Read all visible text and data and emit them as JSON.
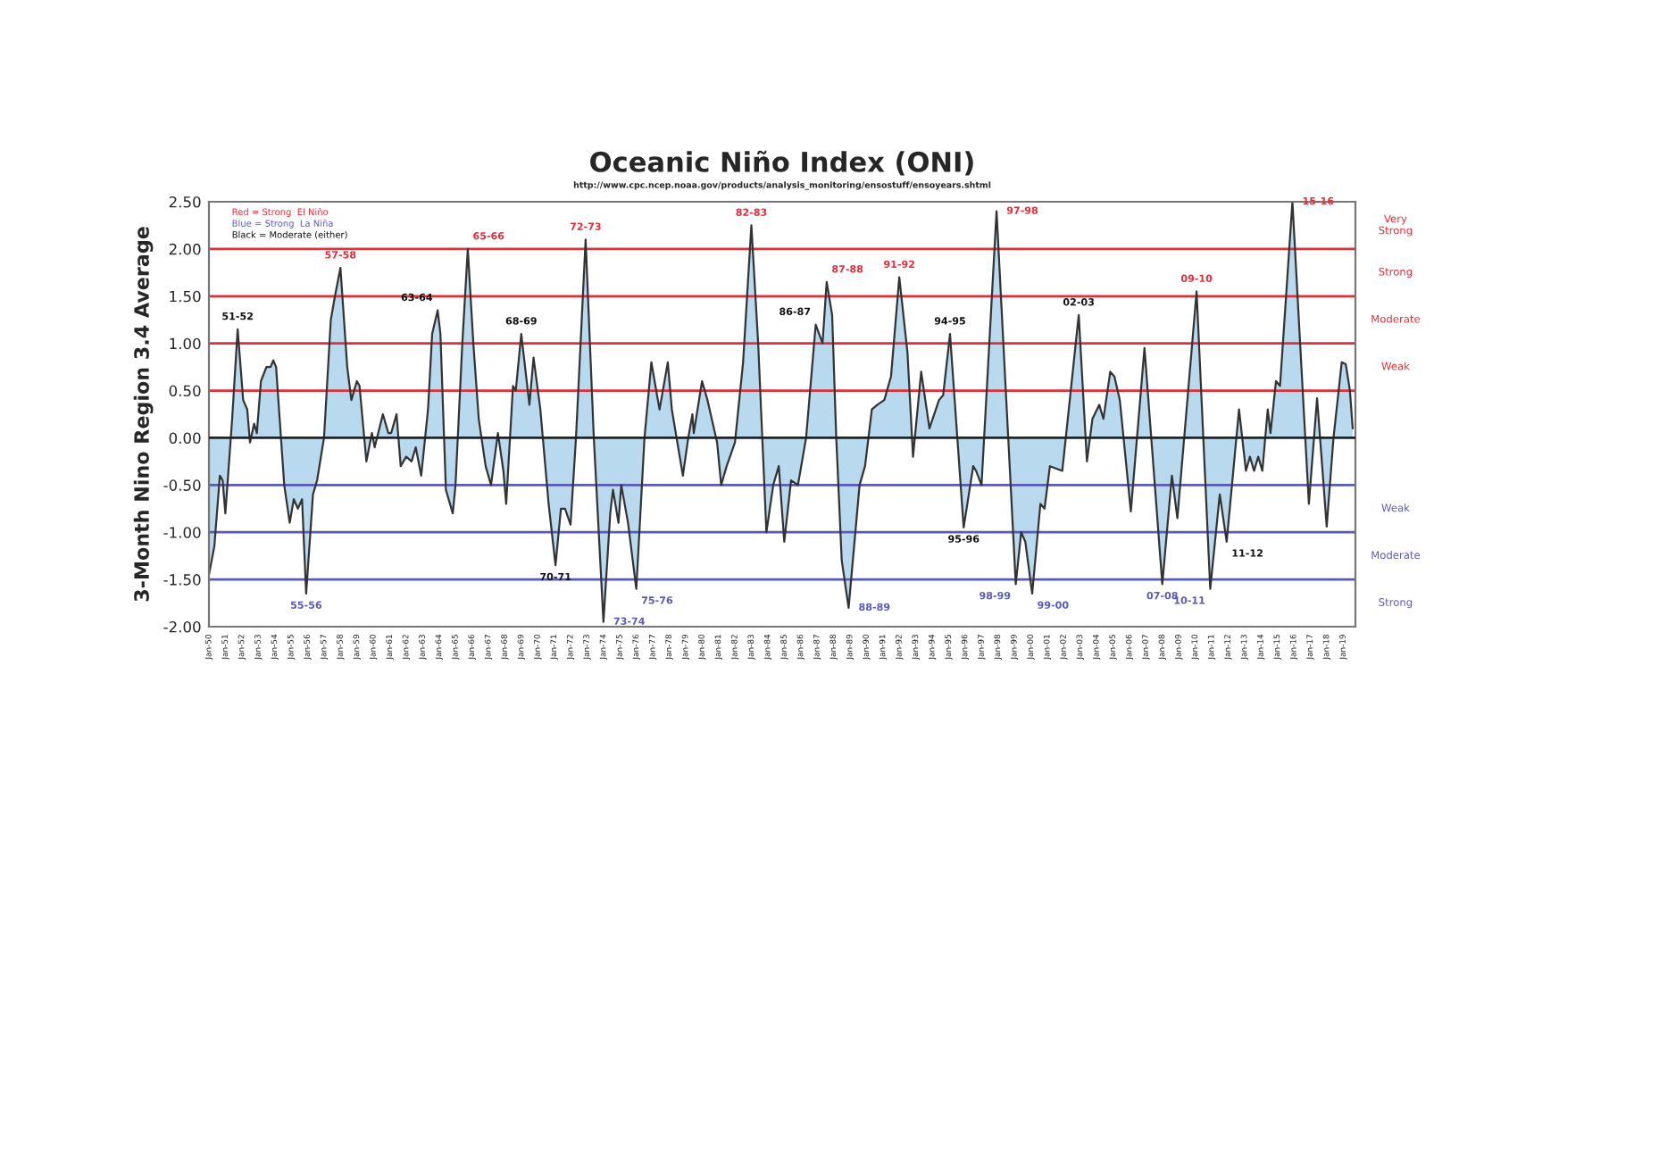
{
  "chart_data": {
    "type": "area",
    "title": "Oceanic Niño Index (ONI)",
    "subtitle": "http://www.cpc.ncep.noaa.gov/products/analysis_monitoring/ensostuff/ensoyears.shtml",
    "ylabel": "3-Month Nino Region 3.4 Average",
    "xlim": [
      "1950-01",
      "2019-10"
    ],
    "ylim": [
      -2.0,
      2.5
    ],
    "yticks": [
      {
        "value": -2.0,
        "label": "-2.00"
      },
      {
        "value": -1.5,
        "label": "-1.50"
      },
      {
        "value": -1.0,
        "label": "-1.00"
      },
      {
        "value": -0.5,
        "label": "-0.50"
      },
      {
        "value": 0,
        "label": "0.00"
      },
      {
        "value": 0.5,
        "label": "0.50"
      },
      {
        "value": 1.0,
        "label": "1.00"
      },
      {
        "value": 1.5,
        "label": "1.50"
      },
      {
        "value": 2.0,
        "label": "2.00"
      },
      {
        "value": 2.5,
        "label": "2.50"
      }
    ],
    "xticks": [
      {
        "value": "1950-01",
        "label": "Jan-50"
      },
      {
        "value": "1951-01",
        "label": "Jan-51"
      },
      {
        "value": "1952-01",
        "label": "Jan-52"
      },
      {
        "value": "1953-01",
        "label": "Jan-53"
      },
      {
        "value": "1954-01",
        "label": "Jan-54"
      },
      {
        "value": "1955-01",
        "label": "Jan-55"
      },
      {
        "value": "1956-01",
        "label": "Jan-56"
      },
      {
        "value": "1957-01",
        "label": "Jan-57"
      },
      {
        "value": "1958-01",
        "label": "Jan-58"
      },
      {
        "value": "1959-01",
        "label": "Jan-59"
      },
      {
        "value": "1960-01",
        "label": "Jan-60"
      },
      {
        "value": "1961-01",
        "label": "Jan-61"
      },
      {
        "value": "1962-01",
        "label": "Jan-62"
      },
      {
        "value": "1963-01",
        "label": "Jan-63"
      },
      {
        "value": "1964-01",
        "label": "Jan-64"
      },
      {
        "value": "1965-01",
        "label": "Jan-65"
      },
      {
        "value": "1966-01",
        "label": "Jan-66"
      },
      {
        "value": "1967-01",
        "label": "Jan-67"
      },
      {
        "value": "1968-01",
        "label": "Jan-68"
      },
      {
        "value": "1969-01",
        "label": "Jan-69"
      },
      {
        "value": "1970-01",
        "label": "Jan-70"
      },
      {
        "value": "1971-01",
        "label": "Jan-71"
      },
      {
        "value": "1972-01",
        "label": "Jan-72"
      },
      {
        "value": "1973-01",
        "label": "Jan-73"
      },
      {
        "value": "1974-01",
        "label": "Jan-74"
      },
      {
        "value": "1975-01",
        "label": "Jan-75"
      },
      {
        "value": "1976-01",
        "label": "Jan-76"
      },
      {
        "value": "1977-01",
        "label": "Jan-77"
      },
      {
        "value": "1978-01",
        "label": "Jan-78"
      },
      {
        "value": "1979-01",
        "label": "Jan-79"
      },
      {
        "value": "1980-01",
        "label": "Jan-80"
      },
      {
        "value": "1981-01",
        "label": "Jan-81"
      },
      {
        "value": "1982-01",
        "label": "Jan-82"
      },
      {
        "value": "1983-01",
        "label": "Jan-83"
      },
      {
        "value": "1984-01",
        "label": "Jan-84"
      },
      {
        "value": "1985-01",
        "label": "Jan-85"
      },
      {
        "value": "1986-01",
        "label": "Jan-86"
      },
      {
        "value": "1987-01",
        "label": "Jan-87"
      },
      {
        "value": "1988-01",
        "label": "Jan-88"
      },
      {
        "value": "1989-01",
        "label": "Jan-89"
      },
      {
        "value": "1990-01",
        "label": "Jan-90"
      },
      {
        "value": "1991-01",
        "label": "Jan-91"
      },
      {
        "value": "1992-01",
        "label": "Jan-92"
      },
      {
        "value": "1993-01",
        "label": "Jan-93"
      },
      {
        "value": "1994-01",
        "label": "Jan-94"
      },
      {
        "value": "1995-01",
        "label": "Jan-95"
      },
      {
        "value": "1996-01",
        "label": "Jan-96"
      },
      {
        "value": "1997-01",
        "label": "Jan-97"
      },
      {
        "value": "1998-01",
        "label": "Jan-98"
      },
      {
        "value": "1999-01",
        "label": "Jan-99"
      },
      {
        "value": "2000-01",
        "label": "Jan-00"
      },
      {
        "value": "2001-01",
        "label": "Jan-01"
      },
      {
        "value": "2002-01",
        "label": "Jan-02"
      },
      {
        "value": "2003-01",
        "label": "Jan-03"
      },
      {
        "value": "2004-01",
        "label": "Jan-04"
      },
      {
        "value": "2005-01",
        "label": "Jan-05"
      },
      {
        "value": "2006-01",
        "label": "Jan-06"
      },
      {
        "value": "2007-01",
        "label": "Jan-07"
      },
      {
        "value": "2008-01",
        "label": "Jan-08"
      },
      {
        "value": "2009-01",
        "label": "Jan-09"
      },
      {
        "value": "2010-01",
        "label": "Jan-10"
      },
      {
        "value": "2011-01",
        "label": "Jan-11"
      },
      {
        "value": "2012-01",
        "label": "Jan-12"
      },
      {
        "value": "2013-01",
        "label": "Jan-13"
      },
      {
        "value": "2014-01",
        "label": "Jan-14"
      },
      {
        "value": "2015-01",
        "label": "Jan-15"
      },
      {
        "value": "2016-01",
        "label": "Jan-16"
      },
      {
        "value": "2017-01",
        "label": "Jan-17"
      },
      {
        "value": "2018-01",
        "label": "Jan-18"
      },
      {
        "value": "2019-01",
        "label": "Jan-19"
      }
    ],
    "series": [
      {
        "color": "#b9d9ee",
        "x": [
          "1950-01",
          "1950-05",
          "1950-09",
          "1950-11",
          "1951-01",
          "1951-06",
          "1951-10",
          "1952-02",
          "1952-05",
          "1952-07",
          "1952-10",
          "1952-12",
          "1953-03",
          "1953-07",
          "1953-10",
          "1953-12",
          "1954-02",
          "1954-08",
          "1954-12",
          "1955-03",
          "1955-06",
          "1955-09",
          "1955-12",
          "1956-05",
          "1956-08",
          "1957-01",
          "1957-06",
          "1957-09",
          "1958-01",
          "1958-06",
          "1958-09",
          "1959-01",
          "1959-03",
          "1959-08",
          "1959-12",
          "1960-02",
          "1960-08",
          "1960-12",
          "1961-02",
          "1961-06",
          "1961-09",
          "1962-01",
          "1962-05",
          "1962-08",
          "1962-12",
          "1963-05",
          "1963-08",
          "1963-12",
          "1964-02",
          "1964-06",
          "1964-11",
          "1965-01",
          "1965-06",
          "1965-10",
          "1966-02",
          "1966-06",
          "1966-11",
          "1967-03",
          "1967-08",
          "1967-12",
          "1968-02",
          "1968-07",
          "1968-09",
          "1969-01",
          "1969-07",
          "1969-10",
          "1970-03",
          "1970-09",
          "1971-02",
          "1971-06",
          "1971-09",
          "1972-01",
          "1972-05",
          "1972-12",
          "1973-06",
          "1974-01",
          "1974-06",
          "1974-08",
          "1974-12",
          "1975-02",
          "1975-07",
          "1976-01",
          "1976-07",
          "1976-12",
          "1977-03",
          "1977-06",
          "1977-12",
          "1978-03",
          "1978-11",
          "1979-03",
          "1979-06",
          "1979-07",
          "1980-01",
          "1980-05",
          "1980-12",
          "1981-03",
          "1981-07",
          "1982-01",
          "1982-07",
          "1983-01",
          "1983-06",
          "1983-12",
          "1984-05",
          "1984-09",
          "1985-01",
          "1985-06",
          "1985-11",
          "1986-05",
          "1986-12",
          "1987-05",
          "1987-08",
          "1987-12",
          "1988-03",
          "1988-07",
          "1988-12",
          "1989-08",
          "1989-12",
          "1990-05",
          "1990-09",
          "1991-02",
          "1991-07",
          "1992-01",
          "1992-07",
          "1992-11",
          "1993-05",
          "1993-11",
          "1994-06",
          "1994-09",
          "1995-02",
          "1995-12",
          "1996-07",
          "1996-09",
          "1997-01",
          "1997-12",
          "1999-02",
          "1999-06",
          "1999-09",
          "2000-02",
          "2000-08",
          "2000-11",
          "2001-03",
          "2001-12",
          "2002-12",
          "2003-06",
          "2003-10",
          "2004-03",
          "2004-06",
          "2004-11",
          "2005-02",
          "2005-06",
          "2006-02",
          "2006-12",
          "2008-01",
          "2008-08",
          "2008-12",
          "2010-02",
          "2010-12",
          "2011-07",
          "2011-12",
          "2012-09",
          "2013-02",
          "2013-05",
          "2013-08",
          "2013-11",
          "2014-02",
          "2014-06",
          "2014-08",
          "2014-12",
          "2015-03",
          "2015-12",
          "2016-12",
          "2017-06",
          "2018-01",
          "2018-06",
          "2018-12",
          "2019-03",
          "2019-06",
          "2019-08"
        ],
        "values": [
          -1.45,
          -1.15,
          -0.4,
          -0.45,
          -0.8,
          0.2,
          1.15,
          0.4,
          0.3,
          -0.05,
          0.15,
          0.05,
          0.6,
          0.75,
          0.75,
          0.82,
          0.75,
          -0.5,
          -0.9,
          -0.65,
          -0.75,
          -0.65,
          -1.65,
          -0.6,
          -0.45,
          0.0,
          1.25,
          1.5,
          1.8,
          0.75,
          0.4,
          0.6,
          0.55,
          -0.25,
          0.05,
          -0.1,
          0.25,
          0.05,
          0.05,
          0.25,
          -0.3,
          -0.2,
          -0.25,
          -0.1,
          -0.4,
          0.3,
          1.1,
          1.35,
          1.1,
          -0.55,
          -0.8,
          -0.5,
          1.0,
          2.0,
          1.0,
          0.2,
          -0.3,
          -0.5,
          0.05,
          -0.35,
          -0.7,
          0.55,
          0.5,
          1.1,
          0.35,
          0.85,
          0.3,
          -0.7,
          -1.35,
          -0.75,
          -0.75,
          -0.92,
          0.0,
          2.1,
          0.0,
          -1.95,
          -0.8,
          -0.55,
          -0.9,
          -0.5,
          -0.9,
          -1.6,
          0.0,
          0.8,
          0.55,
          0.3,
          0.8,
          0.3,
          -0.4,
          0.0,
          0.25,
          0.05,
          0.6,
          0.4,
          -0.05,
          -0.5,
          -0.3,
          -0.05,
          0.8,
          2.25,
          1.0,
          -1.0,
          -0.5,
          -0.3,
          -1.1,
          -0.45,
          -0.5,
          0.0,
          1.2,
          1.0,
          1.65,
          1.3,
          0.0,
          -1.3,
          -1.8,
          -0.5,
          -0.3,
          0.3,
          0.35,
          0.4,
          0.65,
          1.7,
          0.9,
          -0.2,
          0.7,
          0.1,
          0.4,
          0.45,
          1.1,
          -0.95,
          -0.3,
          -0.35,
          -0.5,
          2.4,
          -1.55,
          -1.0,
          -1.1,
          -1.65,
          -0.7,
          -0.75,
          -0.3,
          -0.35,
          1.3,
          -0.25,
          0.2,
          0.35,
          0.2,
          0.7,
          0.65,
          0.4,
          -0.78,
          0.95,
          -1.55,
          -0.4,
          -0.85,
          1.55,
          -1.6,
          -0.6,
          -1.1,
          0.3,
          -0.35,
          -0.2,
          -0.35,
          -0.2,
          -0.35,
          0.3,
          0.05,
          0.6,
          0.55,
          2.5,
          -0.7,
          0.42,
          -0.94,
          0.0,
          0.8,
          0.78,
          0.5,
          0.1
        ]
      }
    ],
    "ref_lines": [
      {
        "axis": "y",
        "value": 0,
        "color": "#222222"
      },
      {
        "axis": "y",
        "value": 0.5,
        "color": "#e0303a"
      },
      {
        "axis": "y",
        "value": 1.0,
        "color": "#e0303a"
      },
      {
        "axis": "y",
        "value": 1.5,
        "color": "#e0303a"
      },
      {
        "axis": "y",
        "value": 2.0,
        "color": "#e0303a"
      },
      {
        "axis": "y",
        "value": -0.5,
        "color": "#5a5ab8"
      },
      {
        "axis": "y",
        "value": -1.0,
        "color": "#5a5ab8"
      },
      {
        "axis": "y",
        "value": -1.5,
        "color": "#5a5ab8"
      }
    ],
    "annotations": [
      "Red = Strong  El Niño",
      "Blue = Strong  La Niña",
      "Black = Moderate (either)",
      "Very\nStrong",
      "Strong",
      "Moderate",
      "Weak",
      "Weak",
      "Moderate",
      "Strong",
      {
        "text": "51-52",
        "x": "1951-10",
        "y": 1.15
      },
      {
        "text": "55-56",
        "x": "1955-12",
        "y": -1.65
      },
      {
        "text": "57-58",
        "x": "1958-01",
        "y": 1.8
      },
      {
        "text": "63-64",
        "x": "1963-12",
        "y": 1.35
      },
      {
        "text": "65-66",
        "x": "1965-10",
        "y": 2.0
      },
      {
        "text": "68-69",
        "x": "1969-01",
        "y": 1.1
      },
      {
        "text": "70-71",
        "x": "1971-02",
        "y": -1.35
      },
      {
        "text": "72-73",
        "x": "1972-12",
        "y": 2.1
      },
      {
        "text": "73-74",
        "x": "1974-01",
        "y": -1.95
      },
      {
        "text": "75-76",
        "x": "1976-01",
        "y": -1.6
      },
      {
        "text": "82-83",
        "x": "1983-01",
        "y": 2.25
      },
      {
        "text": "86-87",
        "x": "1986-12",
        "y": 1.2
      },
      {
        "text": "87-88",
        "x": "1987-08",
        "y": 1.65
      },
      {
        "text": "88-89",
        "x": "1988-12",
        "y": -1.8
      },
      {
        "text": "91-92",
        "x": "1992-01",
        "y": 1.7
      },
      {
        "text": "94-95",
        "x": "1995-02",
        "y": 1.1
      },
      {
        "text": "95-96",
        "x": "1995-12",
        "y": -0.95
      },
      {
        "text": "97-98",
        "x": "1997-12",
        "y": 2.4
      },
      {
        "text": "98-99",
        "x": "1999-02",
        "y": -1.55
      },
      {
        "text": "99-00",
        "x": "2000-02",
        "y": -1.65
      },
      {
        "text": "02-03",
        "x": "2002-12",
        "y": 1.3
      },
      {
        "text": "07-08",
        "x": "2008-01",
        "y": -1.55
      },
      {
        "text": "09-10",
        "x": "2010-02",
        "y": 1.55
      },
      {
        "text": "10-11",
        "x": "2010-12",
        "y": -1.6
      },
      {
        "text": "11-12",
        "x": "2011-12",
        "y": -1.1
      },
      {
        "text": "15-16",
        "x": "2015-12",
        "y": 2.5
      }
    ],
    "grid": false,
    "legend": false
  }
}
